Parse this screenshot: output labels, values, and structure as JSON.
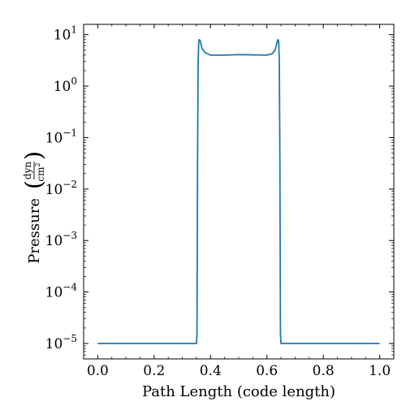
{
  "chart_data": {
    "type": "line",
    "title": "",
    "xlabel": "Path Length  (code length)",
    "ylabel": {
      "main": "Pressure",
      "unit_numerator": "dyn",
      "unit_denominator": "cm",
      "unit_denominator_exp": "2"
    },
    "xscale": "linear",
    "yscale": "log",
    "xlim": [
      -0.05,
      1.05
    ],
    "ylim_log10": [
      -5.3,
      1.2
    ],
    "grid": false,
    "legend": "none",
    "x_ticks": [
      {
        "value": 0.0,
        "label": "0.0"
      },
      {
        "value": 0.2,
        "label": "0.2"
      },
      {
        "value": 0.4,
        "label": "0.4"
      },
      {
        "value": 0.6,
        "label": "0.6"
      },
      {
        "value": 0.8,
        "label": "0.8"
      },
      {
        "value": 1.0,
        "label": "1.0"
      }
    ],
    "y_ticks": [
      {
        "exp": 1,
        "base": "10",
        "power": "1"
      },
      {
        "exp": 0,
        "base": "10",
        "power": "0"
      },
      {
        "exp": -1,
        "base": "10",
        "power": "−1"
      },
      {
        "exp": -2,
        "base": "10",
        "power": "−2"
      },
      {
        "exp": -3,
        "base": "10",
        "power": "−3"
      },
      {
        "exp": -4,
        "base": "10",
        "power": "−4"
      },
      {
        "exp": -5,
        "base": "10",
        "power": "−5"
      }
    ],
    "series": [
      {
        "color": "#1f77b4",
        "x": [
          0.0,
          0.1,
          0.2,
          0.3,
          0.35,
          0.352,
          0.354,
          0.356,
          0.358,
          0.36,
          0.363,
          0.366,
          0.37,
          0.38,
          0.4,
          0.45,
          0.5,
          0.55,
          0.6,
          0.62,
          0.63,
          0.634,
          0.637,
          0.64,
          0.642,
          0.644,
          0.646,
          0.648,
          0.65,
          0.7,
          0.8,
          0.9,
          1.0
        ],
        "y": [
          1e-05,
          1e-05,
          1e-05,
          1e-05,
          1e-05,
          1.5e-05,
          0.033,
          2.7,
          7.0,
          8.0,
          7.7,
          6.6,
          5.4,
          4.5,
          4.0,
          4.0,
          4.1,
          4.05,
          4.0,
          4.3,
          5.2,
          6.4,
          7.6,
          8.0,
          7.0,
          2.7,
          0.033,
          1.5e-05,
          1e-05,
          1e-05,
          1e-05,
          1e-05,
          1e-05
        ]
      }
    ]
  }
}
